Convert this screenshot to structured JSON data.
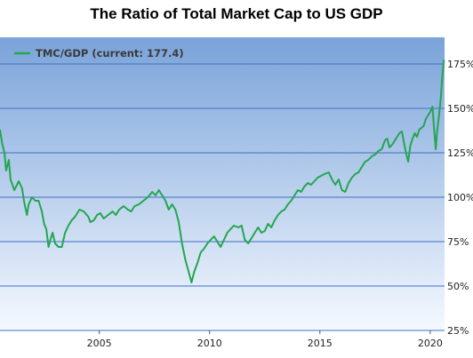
{
  "chart_data": {
    "type": "line",
    "title": "The Ratio of Total Market Cap to US GDP",
    "xlabel": "",
    "ylabel": "",
    "xlim": [
      2000.5,
      2020.65
    ],
    "ylim": [
      25,
      190
    ],
    "x_ticks": [
      {
        "value": 2005,
        "label": "2005"
      },
      {
        "value": 2010,
        "label": "2010"
      },
      {
        "value": 2015,
        "label": "2015"
      },
      {
        "value": 2020,
        "label": "2020"
      }
    ],
    "y_ticks": [
      {
        "value": 25,
        "label": "25%"
      },
      {
        "value": 50,
        "label": "50%"
      },
      {
        "value": 75,
        "label": "75%"
      },
      {
        "value": 100,
        "label": "100%"
      },
      {
        "value": 125,
        "label": "125%"
      },
      {
        "value": 150,
        "label": "150%"
      },
      {
        "value": 175,
        "label": "175%"
      }
    ],
    "grid": "horizontal",
    "legend_position": "top-left",
    "series": [
      {
        "name": "TMC/GDP (current: 177.4)",
        "color": "#22a650",
        "points": [
          [
            2000.5,
            138
          ],
          [
            2000.6,
            130
          ],
          [
            2000.7,
            125
          ],
          [
            2000.78,
            115
          ],
          [
            2000.9,
            121
          ],
          [
            2000.98,
            110
          ],
          [
            2001.15,
            104
          ],
          [
            2001.35,
            109
          ],
          [
            2001.5,
            105
          ],
          [
            2001.6,
            97
          ],
          [
            2001.72,
            90
          ],
          [
            2001.8,
            96
          ],
          [
            2001.95,
            100
          ],
          [
            2002.1,
            98
          ],
          [
            2002.25,
            98
          ],
          [
            2002.4,
            92
          ],
          [
            2002.5,
            85
          ],
          [
            2002.6,
            82
          ],
          [
            2002.7,
            72
          ],
          [
            2002.78,
            76
          ],
          [
            2002.88,
            80
          ],
          [
            2003.0,
            74
          ],
          [
            2003.15,
            72
          ],
          [
            2003.3,
            72
          ],
          [
            2003.45,
            80
          ],
          [
            2003.6,
            84
          ],
          [
            2003.75,
            87
          ],
          [
            2003.9,
            89
          ],
          [
            2004.1,
            93
          ],
          [
            2004.3,
            92
          ],
          [
            2004.5,
            89
          ],
          [
            2004.6,
            86
          ],
          [
            2004.75,
            87
          ],
          [
            2004.9,
            90
          ],
          [
            2005.05,
            91
          ],
          [
            2005.2,
            88
          ],
          [
            2005.4,
            90
          ],
          [
            2005.6,
            92
          ],
          [
            2005.75,
            90
          ],
          [
            2005.9,
            93
          ],
          [
            2006.1,
            95
          ],
          [
            2006.3,
            93
          ],
          [
            2006.45,
            92
          ],
          [
            2006.6,
            95
          ],
          [
            2006.8,
            96
          ],
          [
            2007.0,
            98
          ],
          [
            2007.2,
            100
          ],
          [
            2007.4,
            103
          ],
          [
            2007.55,
            101
          ],
          [
            2007.7,
            104
          ],
          [
            2007.85,
            101
          ],
          [
            2008.0,
            98
          ],
          [
            2008.15,
            93
          ],
          [
            2008.3,
            96
          ],
          [
            2008.45,
            93
          ],
          [
            2008.6,
            86
          ],
          [
            2008.75,
            74
          ],
          [
            2008.9,
            65
          ],
          [
            2009.05,
            58
          ],
          [
            2009.18,
            52
          ],
          [
            2009.3,
            58
          ],
          [
            2009.45,
            63
          ],
          [
            2009.6,
            69
          ],
          [
            2009.75,
            71
          ],
          [
            2009.9,
            74
          ],
          [
            2010.05,
            76
          ],
          [
            2010.2,
            78
          ],
          [
            2010.35,
            75
          ],
          [
            2010.5,
            72
          ],
          [
            2010.65,
            76
          ],
          [
            2010.8,
            80
          ],
          [
            2010.95,
            82
          ],
          [
            2011.1,
            84
          ],
          [
            2011.3,
            83
          ],
          [
            2011.45,
            84
          ],
          [
            2011.6,
            76
          ],
          [
            2011.75,
            74
          ],
          [
            2011.9,
            77
          ],
          [
            2012.05,
            80
          ],
          [
            2012.2,
            83
          ],
          [
            2012.35,
            80
          ],
          [
            2012.5,
            81
          ],
          [
            2012.65,
            85
          ],
          [
            2012.8,
            83
          ],
          [
            2012.95,
            87
          ],
          [
            2013.1,
            90
          ],
          [
            2013.25,
            92
          ],
          [
            2013.4,
            93
          ],
          [
            2013.55,
            96
          ],
          [
            2013.7,
            98
          ],
          [
            2013.85,
            101
          ],
          [
            2014.0,
            104
          ],
          [
            2014.15,
            103
          ],
          [
            2014.3,
            106
          ],
          [
            2014.45,
            108
          ],
          [
            2014.6,
            107
          ],
          [
            2014.75,
            109
          ],
          [
            2014.9,
            111
          ],
          [
            2015.05,
            112
          ],
          [
            2015.2,
            113
          ],
          [
            2015.4,
            114
          ],
          [
            2015.55,
            110
          ],
          [
            2015.7,
            107
          ],
          [
            2015.85,
            110
          ],
          [
            2016.0,
            104
          ],
          [
            2016.15,
            103
          ],
          [
            2016.3,
            108
          ],
          [
            2016.45,
            111
          ],
          [
            2016.6,
            113
          ],
          [
            2016.75,
            114
          ],
          [
            2016.9,
            117
          ],
          [
            2017.05,
            120
          ],
          [
            2017.2,
            121
          ],
          [
            2017.35,
            123
          ],
          [
            2017.5,
            124
          ],
          [
            2017.65,
            126
          ],
          [
            2017.8,
            127
          ],
          [
            2017.95,
            132
          ],
          [
            2018.05,
            133
          ],
          [
            2018.15,
            128
          ],
          [
            2018.3,
            130
          ],
          [
            2018.45,
            133
          ],
          [
            2018.6,
            136
          ],
          [
            2018.72,
            137
          ],
          [
            2018.82,
            130
          ],
          [
            2018.92,
            124
          ],
          [
            2019.0,
            120
          ],
          [
            2019.1,
            129
          ],
          [
            2019.2,
            133
          ],
          [
            2019.3,
            136
          ],
          [
            2019.4,
            134
          ],
          [
            2019.5,
            138
          ],
          [
            2019.6,
            139
          ],
          [
            2019.7,
            140
          ],
          [
            2019.8,
            144
          ],
          [
            2019.9,
            146
          ],
          [
            2020.0,
            148
          ],
          [
            2020.1,
            151
          ],
          [
            2020.18,
            138
          ],
          [
            2020.25,
            127
          ],
          [
            2020.32,
            138
          ],
          [
            2020.4,
            146
          ],
          [
            2020.48,
            156
          ],
          [
            2020.55,
            168
          ],
          [
            2020.62,
            177.4
          ]
        ]
      }
    ]
  }
}
